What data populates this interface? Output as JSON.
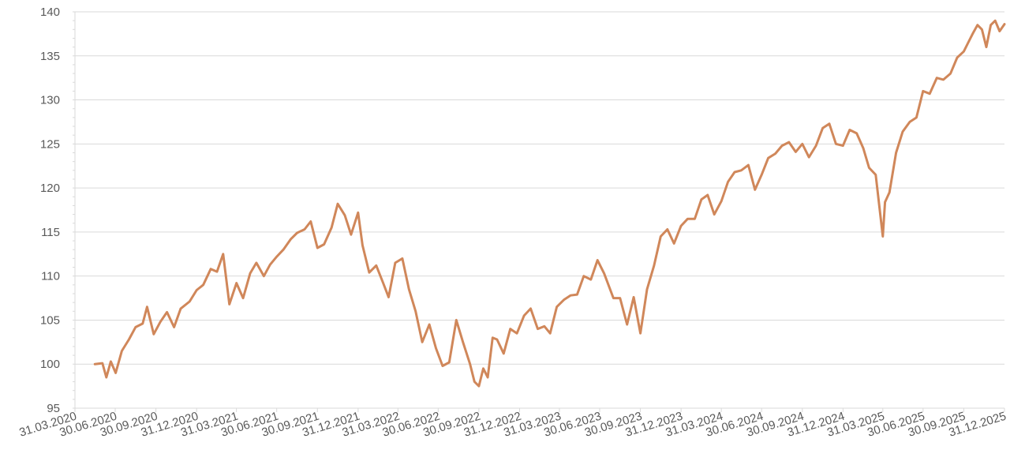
{
  "chart_data": {
    "type": "line",
    "title": "",
    "xlabel": "",
    "ylabel": "",
    "ylim": [
      95,
      140
    ],
    "y_ticks": [
      95,
      100,
      105,
      110,
      115,
      120,
      125,
      130,
      135,
      140
    ],
    "x_tick_labels": [
      "31.03.2020",
      "30.06.2020",
      "30.09.2020",
      "31.12.2020",
      "31.03.2021",
      "30.06.2021",
      "30.09.2021",
      "31.12.2021",
      "31.03.2022",
      "30.06.2022",
      "30.09.2022",
      "31.12.2022",
      "31.03.2023",
      "30.06.2023",
      "30.09.2023",
      "31.12.2023",
      "31.03.2024",
      "30.06.2024",
      "30.09.2024",
      "31.12.2024",
      "31.03.2025",
      "30.06.2025",
      "30.09.2025",
      "31.12.2025"
    ],
    "grid": true,
    "legend": "none",
    "line_color": "#D0875A",
    "series": [
      {
        "x": [
          "2020-05-15",
          "2020-06-01",
          "2020-06-10",
          "2020-06-20",
          "2020-07-01",
          "2020-07-15",
          "2020-07-31",
          "2020-08-15",
          "2020-08-31",
          "2020-09-10",
          "2020-09-25",
          "2020-10-10",
          "2020-10-25",
          "2020-11-10",
          "2020-11-25",
          "2020-12-15",
          "2020-12-31",
          "2021-01-15",
          "2021-02-01",
          "2021-02-15",
          "2021-03-01",
          "2021-03-15",
          "2021-03-31",
          "2021-04-15",
          "2021-05-01",
          "2021-05-15",
          "2021-06-01",
          "2021-06-15",
          "2021-06-30",
          "2021-07-15",
          "2021-08-01",
          "2021-08-15",
          "2021-09-01",
          "2021-09-15",
          "2021-09-30",
          "2021-10-15",
          "2021-11-01",
          "2021-11-15",
          "2021-12-01",
          "2021-12-15",
          "2021-12-31",
          "2022-01-10",
          "2022-01-25",
          "2022-02-10",
          "2022-02-25",
          "2022-03-10",
          "2022-03-25",
          "2022-04-10",
          "2022-04-25",
          "2022-05-10",
          "2022-05-25",
          "2022-06-10",
          "2022-06-25",
          "2022-07-10",
          "2022-07-25",
          "2022-08-10",
          "2022-08-25",
          "2022-09-10",
          "2022-09-20",
          "2022-09-30",
          "2022-10-10",
          "2022-10-20",
          "2022-10-31",
          "2022-11-10",
          "2022-11-25",
          "2022-12-10",
          "2022-12-25",
          "2023-01-10",
          "2023-01-25",
          "2023-02-10",
          "2023-02-25",
          "2023-03-10",
          "2023-03-25",
          "2023-04-10",
          "2023-04-25",
          "2023-05-10",
          "2023-05-25",
          "2023-06-10",
          "2023-06-25",
          "2023-07-10",
          "2023-07-31",
          "2023-08-15",
          "2023-08-31",
          "2023-09-15",
          "2023-09-30",
          "2023-10-15",
          "2023-10-31",
          "2023-11-15",
          "2023-11-30",
          "2023-12-15",
          "2023-12-31",
          "2024-01-15",
          "2024-01-31",
          "2024-02-15",
          "2024-02-29",
          "2024-03-15",
          "2024-03-31",
          "2024-04-15",
          "2024-04-30",
          "2024-05-15",
          "2024-05-31",
          "2024-06-15",
          "2024-06-30",
          "2024-07-15",
          "2024-07-31",
          "2024-08-15",
          "2024-08-31",
          "2024-09-15",
          "2024-09-30",
          "2024-10-15",
          "2024-10-31",
          "2024-11-15",
          "2024-11-30",
          "2024-12-15",
          "2024-12-31",
          "2025-01-15",
          "2025-01-31",
          "2025-02-15",
          "2025-02-28",
          "2025-03-15",
          "2025-03-31",
          "2025-04-05",
          "2025-04-15",
          "2025-04-30",
          "2025-05-15",
          "2025-05-31",
          "2025-06-15",
          "2025-06-30",
          "2025-07-15",
          "2025-07-31",
          "2025-08-15",
          "2025-08-31",
          "2025-09-15",
          "2025-09-30",
          "2025-10-10",
          "2025-10-20",
          "2025-10-31",
          "2025-11-10",
          "2025-11-20",
          "2025-11-30",
          "2025-12-10",
          "2025-12-20",
          "2025-12-31"
        ],
        "values": [
          100.0,
          100.1,
          98.5,
          100.3,
          99.0,
          101.5,
          102.8,
          104.2,
          104.6,
          106.5,
          103.4,
          104.8,
          105.9,
          104.2,
          106.3,
          107.1,
          108.4,
          109.0,
          110.8,
          110.5,
          112.5,
          106.8,
          109.2,
          107.5,
          110.3,
          111.5,
          110.0,
          111.3,
          112.2,
          113.0,
          114.2,
          114.9,
          115.3,
          116.2,
          113.2,
          113.6,
          115.5,
          118.2,
          116.9,
          114.7,
          117.2,
          113.5,
          110.4,
          111.2,
          109.3,
          107.6,
          111.5,
          112.0,
          108.5,
          106.0,
          102.5,
          104.5,
          101.8,
          99.8,
          100.2,
          105.0,
          102.5,
          100.0,
          98.0,
          97.5,
          99.5,
          98.5,
          103.0,
          102.8,
          101.2,
          104.0,
          103.5,
          105.5,
          106.3,
          104.0,
          104.3,
          103.5,
          106.5,
          107.3,
          107.8,
          107.9,
          110.0,
          109.6,
          111.8,
          110.3,
          107.5,
          107.5,
          104.5,
          107.6,
          103.5,
          108.5,
          111.2,
          114.5,
          115.3,
          113.7,
          115.7,
          116.5,
          116.5,
          118.7,
          119.2,
          117.0,
          118.5,
          120.7,
          121.8,
          122.0,
          122.6,
          119.8,
          121.5,
          123.4,
          123.9,
          124.8,
          125.2,
          124.1,
          125.0,
          123.5,
          124.8,
          126.8,
          127.3,
          125.0,
          124.8,
          126.6,
          126.2,
          124.5,
          122.3,
          121.5,
          114.5,
          118.4,
          119.5,
          124.0,
          126.4,
          127.5,
          128.0,
          131.0,
          130.7,
          132.5,
          132.3,
          133.0,
          134.8,
          135.5,
          136.5,
          137.5,
          138.5,
          138.0,
          136.0,
          138.5,
          139.0,
          137.8,
          138.6
        ]
      }
    ]
  }
}
